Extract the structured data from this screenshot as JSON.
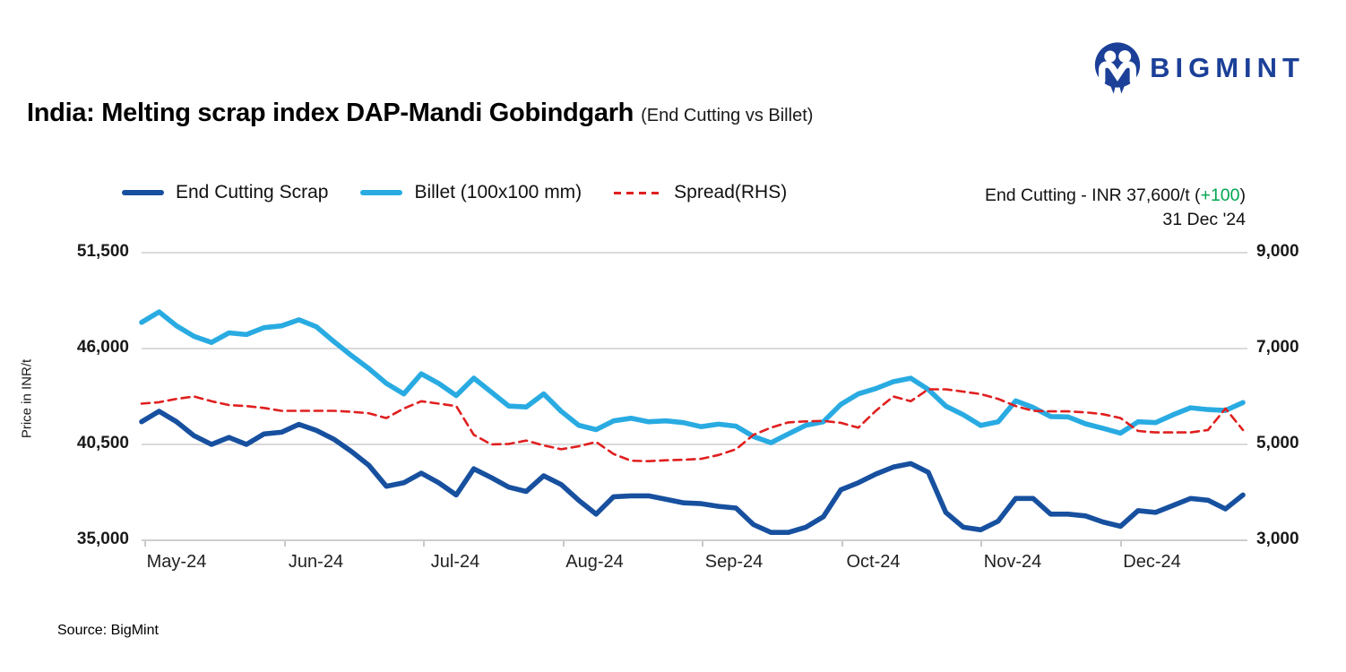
{
  "logo": {
    "brand": "BIGMINT",
    "color": "#1C4098"
  },
  "title": {
    "main": "India: Melting scrap index DAP-Mandi Gobindgarh",
    "sub": "(End Cutting vs Billet)"
  },
  "annotation": {
    "prefix": "End Cutting - INR 37,600/t (",
    "change": "+100",
    "suffix": ")",
    "change_color": "#00A651",
    "date": "31 Dec '24"
  },
  "footer": {
    "source": "Source: BigMint"
  },
  "chart_data": {
    "type": "line",
    "title": "India: Melting scrap index DAP-Mandi Gobindgarh (End Cutting vs Billet)",
    "x_labels": [
      "May-24",
      "Jun-24",
      "Jul-24",
      "Aug-24",
      "Sep-24",
      "Oct-24",
      "Nov-24",
      "Dec-24"
    ],
    "left_axis": {
      "label": "Price in INR/t",
      "min": 35000,
      "max": 51500,
      "ticks_top_down": [
        "51,500",
        "46,000",
        "40,500",
        "35,000"
      ]
    },
    "right_axis": {
      "min": 3000,
      "max": 9000,
      "ticks_top_down": [
        "9,000",
        "7,000",
        "5,000",
        "3,000"
      ]
    },
    "grid": "horizontal",
    "legend_position": "top",
    "series": [
      {
        "name": "End Cutting Scrap",
        "color": "#17509F",
        "style": "solid",
        "axis": "left",
        "values": [
          41800,
          42400,
          41800,
          41000,
          40500,
          40900,
          40500,
          41100,
          41200,
          41650,
          41300,
          40800,
          40100,
          39300,
          38100,
          38300,
          38850,
          38300,
          37600,
          39100,
          38600,
          38050,
          37800,
          38700,
          38200,
          37300,
          36500,
          37500,
          37550,
          37550,
          37350,
          37150,
          37100,
          36950,
          36850,
          35900,
          35450,
          35450,
          35750,
          36350,
          37900,
          38300,
          38800,
          39200,
          39400,
          38900,
          36600,
          35750,
          35600,
          36100,
          37400,
          37400,
          36500,
          36500,
          36400,
          36050,
          35800,
          36700,
          36600,
          37000,
          37400,
          37300,
          36800,
          37600
        ]
      },
      {
        "name": "Billet (100x100 mm)",
        "color": "#29ABE2",
        "style": "solid",
        "axis": "left",
        "values": [
          47500,
          48100,
          47300,
          46700,
          46350,
          46900,
          46800,
          47200,
          47300,
          47650,
          47250,
          46400,
          45600,
          44850,
          44000,
          43400,
          44550,
          44000,
          43300,
          44300,
          43500,
          42700,
          42650,
          43400,
          42400,
          41600,
          41350,
          41850,
          42000,
          41800,
          41850,
          41750,
          41520,
          41660,
          41550,
          40950,
          40600,
          41100,
          41600,
          41800,
          42800,
          43400,
          43700,
          44100,
          44300,
          43650,
          42700,
          42200,
          41590,
          41800,
          43000,
          42620,
          42100,
          42080,
          41680,
          41420,
          41150,
          41800,
          41750,
          42200,
          42600,
          42500,
          42450,
          42900
        ]
      },
      {
        "name": "Spread(RHS)",
        "color": "#E01F1F",
        "style": "dashed",
        "axis": "right",
        "values": [
          5850,
          5880,
          5950,
          6000,
          5900,
          5820,
          5800,
          5760,
          5700,
          5700,
          5700,
          5700,
          5680,
          5650,
          5550,
          5750,
          5900,
          5850,
          5800,
          5200,
          5000,
          5010,
          5080,
          4980,
          4900,
          4960,
          5050,
          4800,
          4660,
          4650,
          4670,
          4680,
          4700,
          4780,
          4900,
          5200,
          5350,
          5460,
          5480,
          5490,
          5450,
          5350,
          5700,
          6000,
          5900,
          6150,
          6150,
          6100,
          6050,
          5950,
          5800,
          5700,
          5690,
          5690,
          5670,
          5630,
          5550,
          5280,
          5250,
          5250,
          5250,
          5300,
          5750,
          5300
        ]
      }
    ]
  }
}
